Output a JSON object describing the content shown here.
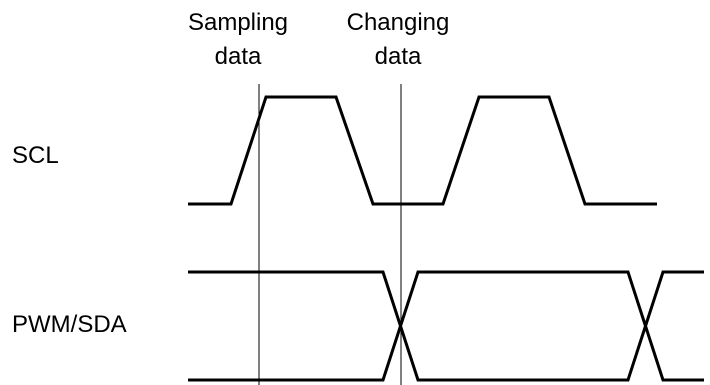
{
  "markers": {
    "sampling": {
      "line1": "Sampling",
      "line2": "data"
    },
    "changing": {
      "line1": "Changing",
      "line2": "data"
    }
  },
  "signals": {
    "scl": {
      "label": "SCL"
    },
    "sda": {
      "label": "PWM/SDA"
    }
  },
  "colors": {
    "background": "#ffffff",
    "stroke": "#000000"
  }
}
